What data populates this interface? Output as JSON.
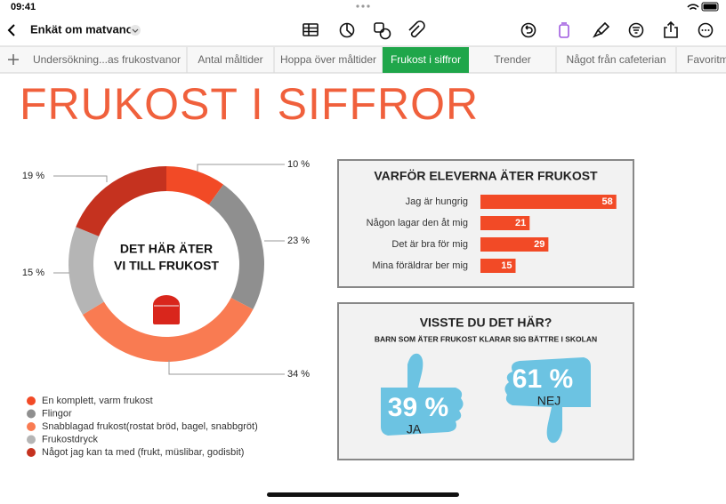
{
  "status": {
    "time": "09:41"
  },
  "toolbar": {
    "document_title": "Enkät om matvanor"
  },
  "tabs": {
    "items": [
      "Undersökning...as frukostvanor",
      "Antal måltider",
      "Hoppa över måltider",
      "Frukost i siffror",
      "Trender",
      "Något från cafeterian",
      "Favoritm"
    ],
    "active": 3
  },
  "sheet_title": "FRUKOST I SIFFROR",
  "chart_data": [
    {
      "type": "pie",
      "donut": true,
      "center_text": [
        "DET HÄR ÄTER",
        "VI TILL FRUKOST"
      ],
      "categories": [
        "En komplett, varm frukost",
        "Flingor",
        "Snabblagad frukost(rostat bröd, bagel, snabbgröt)",
        "Frukostdryck",
        "Något jag kan ta med (frukt, müslibar, godisbit)"
      ],
      "values": [
        10,
        23,
        34,
        15,
        19
      ],
      "value_labels": [
        "10 %",
        "23 %",
        "34 %",
        "15 %",
        "19 %"
      ],
      "colors": [
        "#f24a26",
        "#8f8f8f",
        "#f97b52",
        "#b5b5b5",
        "#c5321f"
      ]
    },
    {
      "type": "bar",
      "orientation": "horizontal",
      "title": "VARFÖR ELEVERNA ÄTER FRUKOST",
      "categories": [
        "Jag är hungrig",
        "Någon lagar den åt mig",
        "Det är bra för mig",
        "Mina föräldrar ber mig"
      ],
      "values": [
        58,
        21,
        29,
        15
      ],
      "color": "#f24a26",
      "xlim": [
        0,
        60
      ]
    },
    {
      "type": "thumbs",
      "title": "VISSTE DU DET HÄR?",
      "subtitle": "BARN SOM ÄTER FRUKOST KLARAR SIG BÄTTRE I SKOLAN",
      "categories": [
        "JA",
        "NEJ"
      ],
      "values": [
        39,
        61
      ],
      "value_labels": [
        "39 %",
        "61 %"
      ],
      "color": "#6cc3e2"
    }
  ]
}
